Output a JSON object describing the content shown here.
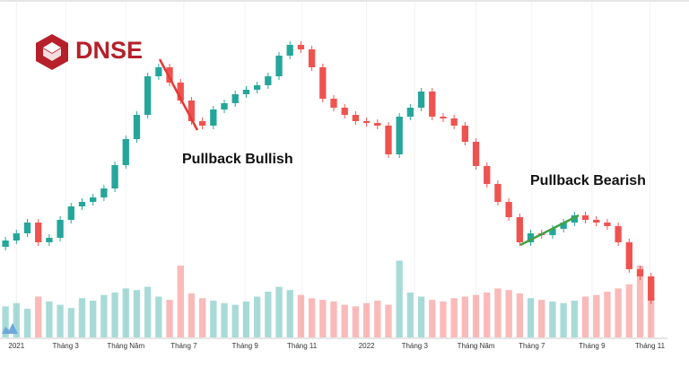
{
  "logo": {
    "text": "DNSE"
  },
  "chart_data": {
    "type": "candlestick",
    "annotations": [
      "Pullback Bullish",
      "Pullback Bearish"
    ],
    "up_color": "#26a69a",
    "down_color": "#ef5350",
    "open": [
      145,
      152,
      160,
      172,
      150,
      155,
      175,
      190,
      195,
      200,
      210,
      236,
      265,
      292,
      335,
      345,
      328,
      308,
      285,
      280,
      298,
      305,
      315,
      320,
      325,
      335,
      358,
      370,
      365,
      345,
      310,
      300,
      292,
      285,
      283,
      280,
      248,
      290,
      300,
      318,
      290,
      288,
      280,
      262,
      235,
      215,
      195,
      178,
      150,
      160,
      158,
      165,
      172,
      180,
      175,
      172,
      168,
      150,
      120,
      112
    ],
    "high": [
      156,
      164,
      176,
      176,
      159,
      179,
      194,
      199,
      204,
      214,
      240,
      269,
      296,
      339,
      349,
      349,
      332,
      312,
      289,
      302,
      309,
      319,
      324,
      329,
      339,
      362,
      374,
      374,
      369,
      349,
      314,
      304,
      296,
      289,
      287,
      284,
      294,
      304,
      322,
      322,
      294,
      292,
      284,
      266,
      239,
      219,
      199,
      182,
      164,
      164,
      169,
      176,
      184,
      184,
      179,
      176,
      172,
      154,
      124,
      116
    ],
    "low": [
      141,
      148,
      156,
      146,
      146,
      151,
      171,
      186,
      191,
      196,
      206,
      232,
      261,
      288,
      331,
      324,
      304,
      281,
      276,
      276,
      294,
      301,
      311,
      316,
      321,
      331,
      354,
      361,
      341,
      306,
      296,
      288,
      281,
      279,
      276,
      244,
      244,
      286,
      296,
      286,
      284,
      276,
      258,
      231,
      211,
      191,
      174,
      146,
      146,
      154,
      154,
      161,
      168,
      171,
      168,
      164,
      146,
      116,
      108,
      81
    ],
    "close": [
      152,
      160,
      172,
      150,
      155,
      175,
      190,
      195,
      200,
      210,
      236,
      265,
      292,
      335,
      345,
      328,
      308,
      285,
      280,
      298,
      305,
      315,
      320,
      325,
      335,
      358,
      370,
      365,
      345,
      310,
      300,
      292,
      285,
      283,
      280,
      248,
      290,
      300,
      318,
      290,
      288,
      280,
      262,
      235,
      215,
      195,
      178,
      150,
      160,
      158,
      165,
      172,
      180,
      175,
      172,
      168,
      150,
      120,
      112,
      85
    ],
    "volume": [
      38,
      42,
      35,
      50,
      44,
      40,
      36,
      48,
      45,
      52,
      55,
      60,
      58,
      62,
      50,
      46,
      88,
      54,
      48,
      45,
      42,
      40,
      44,
      50,
      56,
      62,
      58,
      52,
      48,
      46,
      44,
      40,
      38,
      42,
      45,
      40,
      94,
      55,
      50,
      46,
      44,
      48,
      50,
      52,
      55,
      60,
      58,
      54,
      48,
      46,
      44,
      42,
      45,
      50,
      52,
      56,
      60,
      65,
      88,
      70
    ],
    "xlim": [
      -0.5,
      60.5
    ],
    "ylim": [
      80,
      380
    ],
    "volume_ylim": [
      0,
      100
    ],
    "xticks": [
      {
        "value": 1,
        "label": "2021"
      },
      {
        "value": 5.5,
        "label": "Tháng 3"
      },
      {
        "value": 11,
        "label": "Tháng Năm"
      },
      {
        "value": 16.3,
        "label": "Tháng 7"
      },
      {
        "value": 21.9,
        "label": "Tháng 9"
      },
      {
        "value": 27.1,
        "label": "Tháng 11"
      },
      {
        "value": 33,
        "label": "2022"
      },
      {
        "value": 37.4,
        "label": "Tháng 3"
      },
      {
        "value": 43,
        "label": "Tháng Năm"
      },
      {
        "value": 48.1,
        "label": "Tháng 7"
      },
      {
        "value": 53.6,
        "label": "Tháng 9"
      },
      {
        "value": 58.9,
        "label": "Tháng 11"
      }
    ],
    "grid": true
  }
}
